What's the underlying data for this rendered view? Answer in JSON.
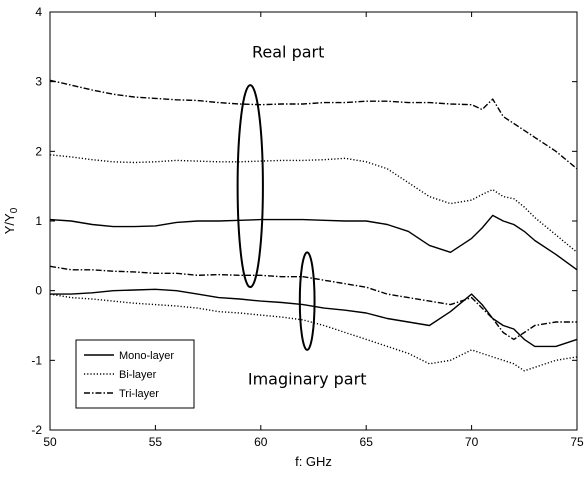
{
  "chart_data": {
    "type": "line",
    "xlabel": "f: GHz",
    "ylabel": "Y/Y",
    "ylabel_subscript": "0",
    "xlim": [
      50,
      75
    ],
    "ylim": [
      -2,
      4
    ],
    "xticks": [
      50,
      55,
      60,
      65,
      70,
      75
    ],
    "yticks": [
      -2,
      -1,
      0,
      1,
      2,
      3,
      4
    ],
    "grid": false,
    "legend": {
      "position": "bottom-left",
      "entries": [
        "Mono-layer",
        "Bi-layer",
        "Tri-layer"
      ]
    },
    "annotations": {
      "real": "Real part",
      "imaginary": "Imaginary part"
    },
    "ellipses": [
      {
        "center": [
          59.5,
          1.5
        ],
        "semi_x": 0.6,
        "semi_y": 1.45
      },
      {
        "center": [
          62.2,
          -0.15
        ],
        "semi_x": 0.35,
        "semi_y": 0.7
      }
    ],
    "x": [
      50,
      51,
      52,
      53,
      54,
      55,
      56,
      57,
      58,
      59,
      60,
      61,
      62,
      63,
      64,
      65,
      66,
      67,
      68,
      69,
      70,
      70.5,
      71,
      71.5,
      72,
      72.5,
      73,
      74,
      75
    ],
    "series": [
      {
        "name": "Mono-layer",
        "part": "real",
        "dash": "solid",
        "values": [
          1.02,
          1.0,
          0.95,
          0.92,
          0.92,
          0.93,
          0.98,
          1.0,
          1.0,
          1.01,
          1.02,
          1.02,
          1.02,
          1.01,
          1.0,
          1.0,
          0.95,
          0.85,
          0.65,
          0.55,
          0.75,
          0.9,
          1.08,
          1.0,
          0.95,
          0.85,
          0.72,
          0.52,
          0.3
        ]
      },
      {
        "name": "Bi-layer",
        "part": "real",
        "dash": "dotted",
        "values": [
          1.95,
          1.92,
          1.88,
          1.85,
          1.84,
          1.85,
          1.87,
          1.86,
          1.85,
          1.85,
          1.86,
          1.87,
          1.87,
          1.88,
          1.9,
          1.85,
          1.75,
          1.55,
          1.35,
          1.25,
          1.3,
          1.38,
          1.45,
          1.35,
          1.32,
          1.2,
          1.05,
          0.8,
          0.55
        ]
      },
      {
        "name": "Tri-layer",
        "part": "real",
        "dash": "dashdot",
        "values": [
          3.02,
          2.95,
          2.88,
          2.82,
          2.78,
          2.76,
          2.74,
          2.73,
          2.7,
          2.68,
          2.67,
          2.68,
          2.68,
          2.7,
          2.7,
          2.72,
          2.72,
          2.7,
          2.7,
          2.68,
          2.67,
          2.6,
          2.75,
          2.5,
          2.4,
          2.3,
          2.2,
          2.0,
          1.75
        ]
      },
      {
        "name": "Mono-layer",
        "part": "imaginary",
        "dash": "solid",
        "values": [
          -0.05,
          -0.05,
          -0.03,
          0.0,
          0.01,
          0.02,
          0.0,
          -0.05,
          -0.1,
          -0.12,
          -0.15,
          -0.17,
          -0.2,
          -0.25,
          -0.28,
          -0.32,
          -0.4,
          -0.45,
          -0.5,
          -0.3,
          -0.05,
          -0.2,
          -0.4,
          -0.5,
          -0.55,
          -0.7,
          -0.8,
          -0.8,
          -0.7
        ]
      },
      {
        "name": "Bi-layer",
        "part": "imaginary",
        "dash": "dotted",
        "values": [
          -0.05,
          -0.1,
          -0.12,
          -0.15,
          -0.18,
          -0.2,
          -0.22,
          -0.25,
          -0.3,
          -0.32,
          -0.35,
          -0.38,
          -0.42,
          -0.5,
          -0.6,
          -0.7,
          -0.8,
          -0.9,
          -1.05,
          -1.0,
          -0.85,
          -0.9,
          -0.95,
          -1.0,
          -1.05,
          -1.15,
          -1.1,
          -1.0,
          -0.95
        ]
      },
      {
        "name": "Tri-layer",
        "part": "imaginary",
        "dash": "dashdot",
        "values": [
          0.35,
          0.3,
          0.3,
          0.28,
          0.27,
          0.25,
          0.25,
          0.22,
          0.23,
          0.22,
          0.22,
          0.2,
          0.2,
          0.15,
          0.1,
          0.05,
          -0.05,
          -0.1,
          -0.15,
          -0.2,
          -0.1,
          -0.25,
          -0.4,
          -0.6,
          -0.7,
          -0.6,
          -0.5,
          -0.45,
          -0.45
        ]
      }
    ]
  }
}
